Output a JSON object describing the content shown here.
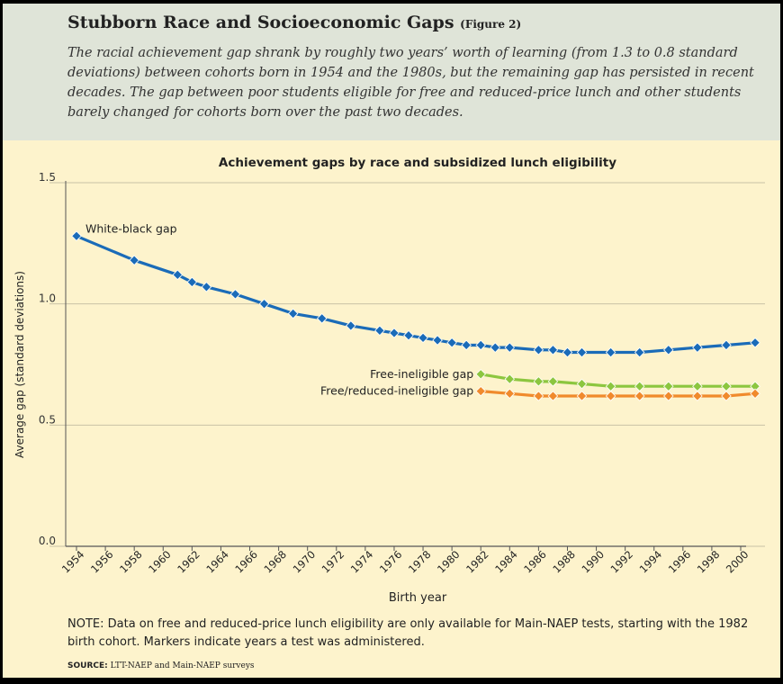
{
  "header": {
    "title": "Stubborn Race and Socioeconomic Gaps",
    "figure_tag": "(Figure 2)",
    "subtitle": "The racial achievement gap shrank by roughly two years’ worth of learning (from 1.3 to 0.8 standard deviations) between cohorts born in 1954 and the 1980s, but the remaining gap has persisted in recent decades. The gap between poor students eligible for free and reduced-price lunch and other students barely changed for cohorts born over the past two decades."
  },
  "colors": {
    "white_black": "#1a6bb8",
    "free_ineligible": "#8cc63f",
    "free_reduced_ineligible": "#f08a2c",
    "grid": "#c9c2a6",
    "axis": "#555555"
  },
  "chart_data": {
    "type": "line",
    "title": "Achievement gaps by race and subsidized lunch eligibility",
    "xlabel": "Birth year",
    "ylabel": "Average gap (standard deviations)",
    "xlim": [
      1954,
      2000
    ],
    "ylim": [
      0,
      1.5
    ],
    "x_ticks": [
      1954,
      1956,
      1958,
      1960,
      1962,
      1964,
      1966,
      1968,
      1970,
      1972,
      1974,
      1976,
      1978,
      1980,
      1982,
      1984,
      1986,
      1988,
      1990,
      1992,
      1994,
      1996,
      1998,
      2000
    ],
    "y_ticks": [
      0.0,
      0.5,
      1.0,
      1.5
    ],
    "y_tick_labels": [
      "0.0",
      "0.5",
      "1.0",
      "1.5"
    ],
    "series": [
      {
        "name": "White-black gap",
        "color_key": "white_black",
        "x": [
          1954,
          1958,
          1961,
          1962,
          1963,
          1965,
          1967,
          1969,
          1971,
          1973,
          1975,
          1976,
          1977,
          1978,
          1979,
          1980,
          1981,
          1982,
          1983,
          1984,
          1986,
          1987,
          1988,
          1989,
          1991,
          1993,
          1995,
          1997,
          1999,
          2001
        ],
        "y": [
          1.28,
          1.18,
          1.12,
          1.09,
          1.07,
          1.04,
          1.0,
          0.96,
          0.94,
          0.91,
          0.89,
          0.88,
          0.87,
          0.86,
          0.85,
          0.84,
          0.83,
          0.83,
          0.82,
          0.82,
          0.81,
          0.81,
          0.8,
          0.8,
          0.8,
          0.8,
          0.81,
          0.82,
          0.83,
          0.84
        ]
      },
      {
        "name": "Free-ineligible gap",
        "color_key": "free_ineligible",
        "x": [
          1982,
          1984,
          1986,
          1987,
          1989,
          1991,
          1993,
          1995,
          1997,
          1999,
          2001
        ],
        "y": [
          0.71,
          0.69,
          0.68,
          0.68,
          0.67,
          0.66,
          0.66,
          0.66,
          0.66,
          0.66,
          0.66
        ]
      },
      {
        "name": "Free/reduced-ineligible gap",
        "color_key": "free_reduced_ineligible",
        "x": [
          1982,
          1984,
          1986,
          1987,
          1989,
          1991,
          1993,
          1995,
          1997,
          1999,
          2001
        ],
        "y": [
          0.64,
          0.63,
          0.62,
          0.62,
          0.62,
          0.62,
          0.62,
          0.62,
          0.62,
          0.62,
          0.63
        ]
      }
    ]
  },
  "note": "NOTE: Data on free and reduced-price lunch eligibility are only available for Main-NAEP tests, starting with the 1982 birth cohort. Markers indicate years a test was administered.",
  "source_label": "SOURCE:",
  "source_text": "LTT-NAEP and Main-NAEP surveys"
}
